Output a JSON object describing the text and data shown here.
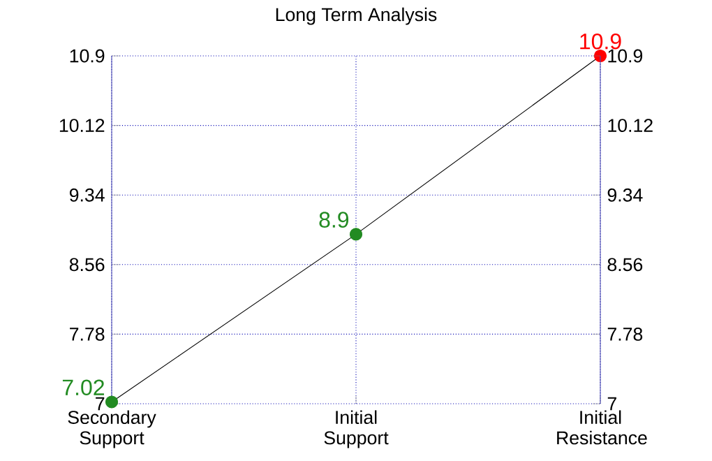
{
  "chart_data": {
    "type": "line",
    "title": "Long Term Analysis",
    "categories": [
      "Secondary Support",
      "Initial Support",
      "Initial Resistance"
    ],
    "series": [
      {
        "color": "#000000",
        "colors": [
          "#228b22",
          "#228b22",
          "#ff0000"
        ],
        "values": [
          7.02,
          8.9,
          10.9
        ]
      }
    ],
    "ylim": [
      7,
      10.9
    ],
    "yticks": [
      7,
      7.78,
      8.56,
      9.34,
      10.12,
      10.9
    ],
    "y2lim": [
      7,
      10.9
    ],
    "y2ticks": [
      7,
      7.78,
      8.56,
      9.34,
      10.12,
      10.9
    ],
    "grid": true,
    "marker": "circle",
    "line_style": "solid",
    "data_labels": true
  }
}
